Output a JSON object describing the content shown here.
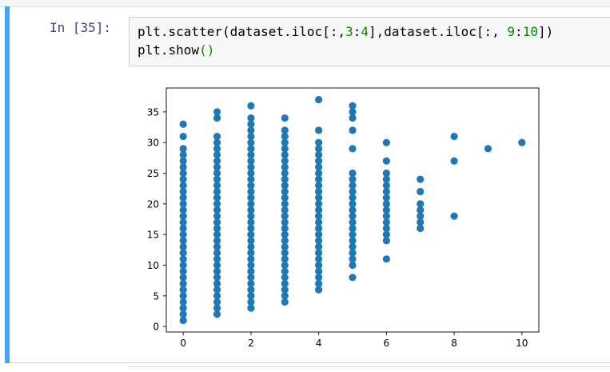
{
  "cell": {
    "prompt": "In [35]:",
    "code_lines": [
      [
        {
          "t": "plt.scatter(dataset.iloc[:,",
          "c": ""
        },
        {
          "t": "3",
          "c": "c-num"
        },
        {
          "t": ":",
          "c": ""
        },
        {
          "t": "4",
          "c": "c-num"
        },
        {
          "t": "],dataset.iloc[:, ",
          "c": ""
        },
        {
          "t": "9",
          "c": "c-num"
        },
        {
          "t": ":",
          "c": ""
        },
        {
          "t": "10",
          "c": "c-num"
        },
        {
          "t": "])",
          "c": ""
        }
      ],
      [
        {
          "t": "plt.show",
          "c": ""
        },
        {
          "t": "()",
          "c": "c-paren"
        }
      ]
    ]
  },
  "colors": {
    "marker": "#1f77b4",
    "cell_bar": "#42a5f5",
    "prompt": "#303f9f",
    "code_number": "#008800"
  },
  "chart_data": {
    "type": "scatter",
    "title": "",
    "xlabel": "",
    "ylabel": "",
    "xlim": [
      -0.5,
      10.5
    ],
    "ylim": [
      -0.9,
      38.9
    ],
    "xticks": [
      0,
      2,
      4,
      6,
      8,
      10
    ],
    "yticks": [
      0,
      5,
      10,
      15,
      20,
      25,
      30,
      35
    ],
    "grid": false,
    "points": [
      [
        0,
        1
      ],
      [
        0,
        2
      ],
      [
        0,
        3
      ],
      [
        0,
        4
      ],
      [
        0,
        5
      ],
      [
        0,
        6
      ],
      [
        0,
        7
      ],
      [
        0,
        8
      ],
      [
        0,
        9
      ],
      [
        0,
        10
      ],
      [
        0,
        11
      ],
      [
        0,
        12
      ],
      [
        0,
        13
      ],
      [
        0,
        14
      ],
      [
        0,
        15
      ],
      [
        0,
        16
      ],
      [
        0,
        17
      ],
      [
        0,
        18
      ],
      [
        0,
        19
      ],
      [
        0,
        20
      ],
      [
        0,
        21
      ],
      [
        0,
        22
      ],
      [
        0,
        23
      ],
      [
        0,
        24
      ],
      [
        0,
        25
      ],
      [
        0,
        26
      ],
      [
        0,
        27
      ],
      [
        0,
        28
      ],
      [
        0,
        29
      ],
      [
        0,
        31
      ],
      [
        0,
        33
      ],
      [
        1,
        2
      ],
      [
        1,
        3
      ],
      [
        1,
        4
      ],
      [
        1,
        5
      ],
      [
        1,
        6
      ],
      [
        1,
        7
      ],
      [
        1,
        8
      ],
      [
        1,
        9
      ],
      [
        1,
        10
      ],
      [
        1,
        11
      ],
      [
        1,
        12
      ],
      [
        1,
        13
      ],
      [
        1,
        14
      ],
      [
        1,
        15
      ],
      [
        1,
        16
      ],
      [
        1,
        17
      ],
      [
        1,
        18
      ],
      [
        1,
        19
      ],
      [
        1,
        20
      ],
      [
        1,
        21
      ],
      [
        1,
        22
      ],
      [
        1,
        23
      ],
      [
        1,
        24
      ],
      [
        1,
        25
      ],
      [
        1,
        26
      ],
      [
        1,
        27
      ],
      [
        1,
        28
      ],
      [
        1,
        29
      ],
      [
        1,
        30
      ],
      [
        1,
        31
      ],
      [
        1,
        34
      ],
      [
        1,
        35
      ],
      [
        2,
        3
      ],
      [
        2,
        4
      ],
      [
        2,
        5
      ],
      [
        2,
        6
      ],
      [
        2,
        7
      ],
      [
        2,
        8
      ],
      [
        2,
        9
      ],
      [
        2,
        10
      ],
      [
        2,
        11
      ],
      [
        2,
        12
      ],
      [
        2,
        13
      ],
      [
        2,
        14
      ],
      [
        2,
        15
      ],
      [
        2,
        16
      ],
      [
        2,
        17
      ],
      [
        2,
        18
      ],
      [
        2,
        19
      ],
      [
        2,
        20
      ],
      [
        2,
        21
      ],
      [
        2,
        22
      ],
      [
        2,
        23
      ],
      [
        2,
        24
      ],
      [
        2,
        25
      ],
      [
        2,
        26
      ],
      [
        2,
        27
      ],
      [
        2,
        28
      ],
      [
        2,
        29
      ],
      [
        2,
        30
      ],
      [
        2,
        31
      ],
      [
        2,
        32
      ],
      [
        2,
        33
      ],
      [
        2,
        34
      ],
      [
        2,
        36
      ],
      [
        3,
        4
      ],
      [
        3,
        5
      ],
      [
        3,
        6
      ],
      [
        3,
        7
      ],
      [
        3,
        8
      ],
      [
        3,
        9
      ],
      [
        3,
        10
      ],
      [
        3,
        11
      ],
      [
        3,
        12
      ],
      [
        3,
        13
      ],
      [
        3,
        14
      ],
      [
        3,
        15
      ],
      [
        3,
        16
      ],
      [
        3,
        17
      ],
      [
        3,
        18
      ],
      [
        3,
        19
      ],
      [
        3,
        20
      ],
      [
        3,
        21
      ],
      [
        3,
        22
      ],
      [
        3,
        23
      ],
      [
        3,
        24
      ],
      [
        3,
        25
      ],
      [
        3,
        26
      ],
      [
        3,
        27
      ],
      [
        3,
        28
      ],
      [
        3,
        29
      ],
      [
        3,
        30
      ],
      [
        3,
        31
      ],
      [
        3,
        32
      ],
      [
        3,
        34
      ],
      [
        4,
        6
      ],
      [
        4,
        7
      ],
      [
        4,
        8
      ],
      [
        4,
        9
      ],
      [
        4,
        10
      ],
      [
        4,
        11
      ],
      [
        4,
        12
      ],
      [
        4,
        13
      ],
      [
        4,
        14
      ],
      [
        4,
        15
      ],
      [
        4,
        16
      ],
      [
        4,
        17
      ],
      [
        4,
        18
      ],
      [
        4,
        19
      ],
      [
        4,
        20
      ],
      [
        4,
        21
      ],
      [
        4,
        22
      ],
      [
        4,
        23
      ],
      [
        4,
        24
      ],
      [
        4,
        25
      ],
      [
        4,
        26
      ],
      [
        4,
        27
      ],
      [
        4,
        28
      ],
      [
        4,
        29
      ],
      [
        4,
        30
      ],
      [
        4,
        32
      ],
      [
        4,
        37
      ],
      [
        5,
        8
      ],
      [
        5,
        10
      ],
      [
        5,
        11
      ],
      [
        5,
        12
      ],
      [
        5,
        13
      ],
      [
        5,
        14
      ],
      [
        5,
        15
      ],
      [
        5,
        16
      ],
      [
        5,
        17
      ],
      [
        5,
        18
      ],
      [
        5,
        19
      ],
      [
        5,
        20
      ],
      [
        5,
        21
      ],
      [
        5,
        22
      ],
      [
        5,
        23
      ],
      [
        5,
        24
      ],
      [
        5,
        25
      ],
      [
        5,
        29
      ],
      [
        5,
        32
      ],
      [
        5,
        34
      ],
      [
        5,
        35
      ],
      [
        5,
        36
      ],
      [
        6,
        11
      ],
      [
        6,
        14
      ],
      [
        6,
        15
      ],
      [
        6,
        16
      ],
      [
        6,
        17
      ],
      [
        6,
        18
      ],
      [
        6,
        19
      ],
      [
        6,
        20
      ],
      [
        6,
        21
      ],
      [
        6,
        22
      ],
      [
        6,
        23
      ],
      [
        6,
        24
      ],
      [
        6,
        25
      ],
      [
        6,
        27
      ],
      [
        6,
        30
      ],
      [
        7,
        16
      ],
      [
        7,
        17
      ],
      [
        7,
        18
      ],
      [
        7,
        19
      ],
      [
        7,
        20
      ],
      [
        7,
        22
      ],
      [
        7,
        24
      ],
      [
        8,
        18
      ],
      [
        8,
        27
      ],
      [
        8,
        31
      ],
      [
        9,
        29
      ],
      [
        10,
        30
      ]
    ]
  }
}
